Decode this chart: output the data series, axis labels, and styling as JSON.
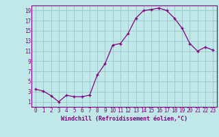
{
  "x": [
    0,
    1,
    2,
    3,
    4,
    5,
    6,
    7,
    8,
    9,
    10,
    11,
    12,
    13,
    14,
    15,
    16,
    17,
    18,
    19,
    20,
    21,
    22,
    23
  ],
  "y": [
    3.5,
    3.1,
    2.2,
    1.0,
    2.3,
    2.0,
    2.0,
    2.3,
    6.3,
    8.5,
    12.2,
    12.5,
    14.5,
    17.5,
    19.0,
    19.2,
    19.5,
    19.0,
    17.5,
    15.5,
    12.5,
    11.0,
    11.8,
    11.2
  ],
  "xlabel": "Windchill (Refroidissement éolien,°C)",
  "xlim": [
    -0.5,
    23.5
  ],
  "ylim": [
    0.0,
    20.0
  ],
  "yticks": [
    1,
    3,
    5,
    7,
    9,
    11,
    13,
    15,
    17,
    19
  ],
  "xticks": [
    0,
    1,
    2,
    3,
    4,
    5,
    6,
    7,
    8,
    9,
    10,
    11,
    12,
    13,
    14,
    15,
    16,
    17,
    18,
    19,
    20,
    21,
    22,
    23
  ],
  "line_color": "#800080",
  "marker": "+",
  "bg_color": "#c0e8e8",
  "grid_color": "#a0c8c8",
  "axis_color": "#800080",
  "label_color": "#800080",
  "tick_color": "#800080",
  "xlabel_fontsize": 6.0,
  "tick_fontsize": 5.5
}
